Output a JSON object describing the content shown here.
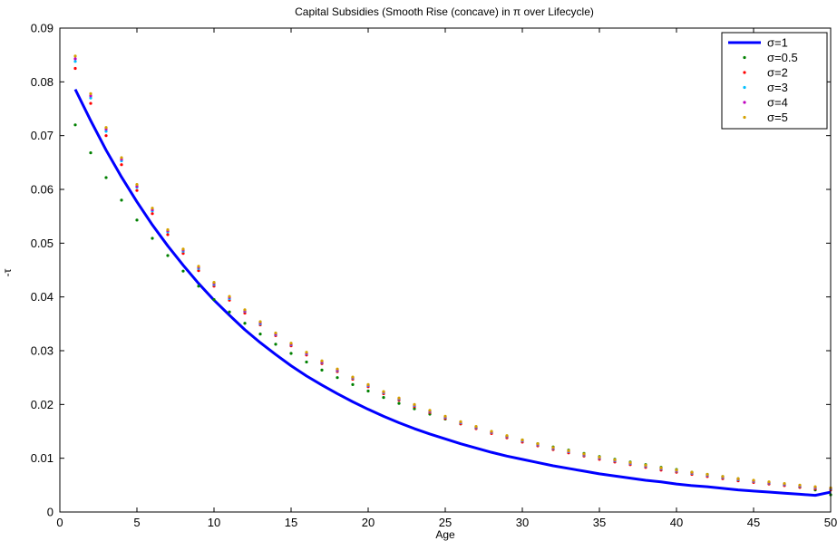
{
  "chart_data": {
    "type": "line",
    "title": "Capital Subsidies (Smooth Rise (concave) in π over Lifecycle)",
    "xlabel": "Age",
    "ylabel": "-τ",
    "xlim": [
      0,
      50
    ],
    "ylim": [
      0,
      0.09
    ],
    "xticks": [
      "0",
      "5",
      "10",
      "15",
      "20",
      "25",
      "30",
      "35",
      "40",
      "45",
      "50"
    ],
    "yticks": [
      "0",
      "0.01",
      "0.02",
      "0.03",
      "0.04",
      "0.05",
      "0.06",
      "0.07",
      "0.08",
      "0.09"
    ],
    "grid": false,
    "legend_position": "top-right",
    "x": [
      1,
      2,
      3,
      4,
      5,
      6,
      7,
      8,
      9,
      10,
      11,
      12,
      13,
      14,
      15,
      16,
      17,
      18,
      19,
      20,
      21,
      22,
      23,
      24,
      25,
      26,
      27,
      28,
      29,
      30,
      31,
      32,
      33,
      34,
      35,
      36,
      37,
      38,
      39,
      40,
      41,
      42,
      43,
      44,
      45,
      46,
      47,
      48,
      49,
      50
    ],
    "series": [
      {
        "name": "σ=1",
        "style": "line",
        "color": "#0000ff",
        "values": [
          0.0786,
          0.0728,
          0.0673,
          0.0623,
          0.0577,
          0.0534,
          0.0495,
          0.0459,
          0.0425,
          0.0394,
          0.0366,
          0.0339,
          0.0315,
          0.0293,
          0.0272,
          0.0253,
          0.0236,
          0.022,
          0.0205,
          0.0191,
          0.0178,
          0.0166,
          0.0155,
          0.0145,
          0.0136,
          0.0127,
          0.0119,
          0.0111,
          0.0104,
          0.0098,
          0.0092,
          0.0086,
          0.0081,
          0.0076,
          0.0071,
          0.0067,
          0.0063,
          0.0059,
          0.0056,
          0.0052,
          0.0049,
          0.0047,
          0.0044,
          0.0041,
          0.0039,
          0.0037,
          0.0035,
          0.0033,
          0.0031,
          0.0037
        ]
      },
      {
        "name": "σ=0.5",
        "style": "dots",
        "color": "#008000",
        "values": [
          0.072,
          0.0668,
          0.0622,
          0.058,
          0.0543,
          0.0509,
          0.0477,
          0.0448,
          0.042,
          0.0395,
          0.0372,
          0.0351,
          0.0331,
          0.0312,
          0.0295,
          0.0279,
          0.0264,
          0.025,
          0.0237,
          0.0225,
          0.0213,
          0.0202,
          0.0192,
          0.0182,
          0.0173,
          0.0164,
          0.0156,
          0.0148,
          0.0141,
          0.0134,
          0.0127,
          0.0121,
          0.0115,
          0.0109,
          0.0103,
          0.0098,
          0.0093,
          0.0088,
          0.0083,
          0.0079,
          0.0074,
          0.007,
          0.0066,
          0.0062,
          0.0058,
          0.0054,
          0.005,
          0.0046,
          0.0041,
          0.0032
        ]
      },
      {
        "name": "σ=2",
        "style": "dots",
        "color": "#ff0000",
        "values": [
          0.0825,
          0.076,
          0.07,
          0.0646,
          0.0598,
          0.0555,
          0.0516,
          0.0481,
          0.0449,
          0.042,
          0.0394,
          0.037,
          0.0348,
          0.0328,
          0.0309,
          0.0292,
          0.0276,
          0.0261,
          0.0247,
          0.0233,
          0.022,
          0.0208,
          0.0196,
          0.0185,
          0.0174,
          0.0164,
          0.0155,
          0.0146,
          0.0138,
          0.013,
          0.0123,
          0.0116,
          0.011,
          0.0104,
          0.0098,
          0.0093,
          0.0088,
          0.0083,
          0.0078,
          0.0074,
          0.007,
          0.0066,
          0.0062,
          0.0058,
          0.0055,
          0.0052,
          0.0049,
          0.0046,
          0.0043,
          0.0041
        ]
      },
      {
        "name": "σ=3",
        "style": "dots",
        "color": "#00bfff",
        "values": [
          0.0838,
          0.077,
          0.0708,
          0.0653,
          0.0604,
          0.056,
          0.0521,
          0.0485,
          0.0453,
          0.0423,
          0.0397,
          0.0373,
          0.035,
          0.033,
          0.0311,
          0.0294,
          0.0278,
          0.0263,
          0.0249,
          0.0235,
          0.0222,
          0.021,
          0.0198,
          0.0187,
          0.0176,
          0.0166,
          0.0157,
          0.0148,
          0.014,
          0.0132,
          0.0125,
          0.0118,
          0.0112,
          0.0106,
          0.01,
          0.0095,
          0.009,
          0.0085,
          0.008,
          0.0076,
          0.0072,
          0.0068,
          0.0064,
          0.006,
          0.0057,
          0.0054,
          0.0051,
          0.0048,
          0.0045,
          0.0043
        ]
      },
      {
        "name": "σ=4",
        "style": "dots",
        "color": "#bf00bf",
        "values": [
          0.0843,
          0.0774,
          0.0712,
          0.0656,
          0.0606,
          0.0562,
          0.0523,
          0.0487,
          0.0455,
          0.0425,
          0.0399,
          0.0374,
          0.0352,
          0.0331,
          0.0312,
          0.0295,
          0.0279,
          0.0264,
          0.025,
          0.0236,
          0.0223,
          0.0211,
          0.0199,
          0.0188,
          0.0177,
          0.0167,
          0.0158,
          0.0149,
          0.0141,
          0.0133,
          0.0126,
          0.0119,
          0.0113,
          0.0107,
          0.0101,
          0.0096,
          0.0091,
          0.0086,
          0.0081,
          0.0077,
          0.0073,
          0.0069,
          0.0065,
          0.0061,
          0.0058,
          0.0055,
          0.0052,
          0.0049,
          0.0046,
          0.0044
        ]
      },
      {
        "name": "σ=5",
        "style": "dots",
        "color": "#d4a000",
        "values": [
          0.0848,
          0.0778,
          0.0715,
          0.0659,
          0.0609,
          0.0565,
          0.0525,
          0.0489,
          0.0457,
          0.0427,
          0.0401,
          0.0376,
          0.0354,
          0.0333,
          0.0314,
          0.0297,
          0.0281,
          0.0266,
          0.0251,
          0.0237,
          0.0224,
          0.0212,
          0.02,
          0.0189,
          0.0178,
          0.0168,
          0.0159,
          0.015,
          0.0142,
          0.0134,
          0.0127,
          0.012,
          0.0114,
          0.0108,
          0.0102,
          0.0097,
          0.0092,
          0.0087,
          0.0082,
          0.0078,
          0.0074,
          0.007,
          0.0066,
          0.0062,
          0.0059,
          0.0056,
          0.0053,
          0.005,
          0.0047,
          0.0045
        ]
      }
    ]
  }
}
